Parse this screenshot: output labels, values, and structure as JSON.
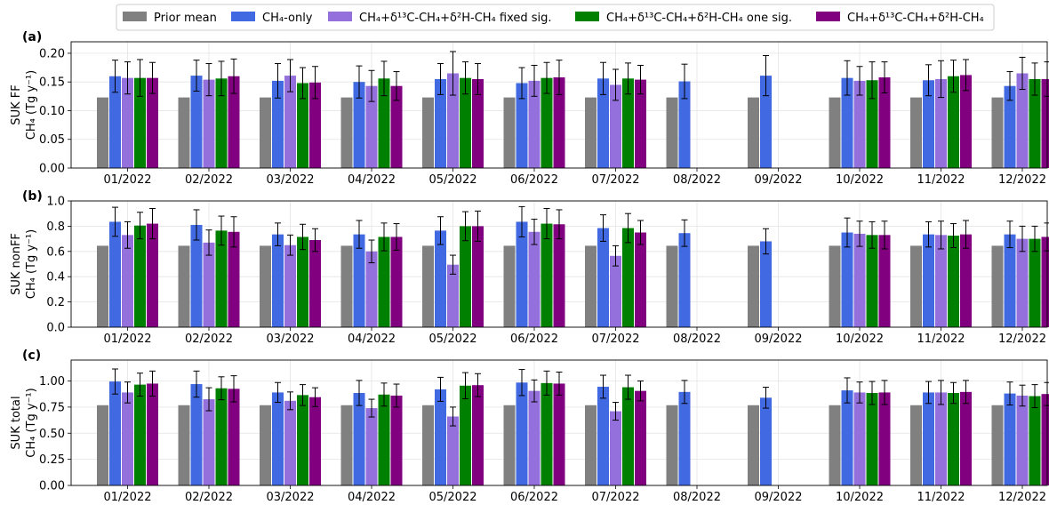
{
  "legend": {
    "placement": "top-center",
    "items": [
      {
        "label": "Prior mean",
        "color": "#808080"
      },
      {
        "label": "CH₄-only",
        "color": "#4169e1"
      },
      {
        "label": "CH₄+δ¹³C-CH₄+δ²H-CH₄ fixed sig.",
        "color": "#9370db"
      },
      {
        "label": "CH₄+δ¹³C-CH₄+δ²H-CH₄ one sig.",
        "color": "#008000"
      },
      {
        "label": "CH₄+δ¹³C-CH₄+δ²H-CH₄",
        "color": "#800080"
      }
    ]
  },
  "chart_data": [
    {
      "type": "bar",
      "panel_label": "(a)",
      "ylabel_line1": "SUK FF",
      "ylabel_line2": "CH₄ (Tg y⁻¹)",
      "ylim": [
        0,
        0.22
      ],
      "yticks": [
        "0.00",
        "0.05",
        "0.10",
        "0.15",
        "0.20"
      ],
      "grid": true,
      "categories": [
        "01/2022",
        "02/2022",
        "03/2022",
        "04/2022",
        "05/2022",
        "06/2022",
        "07/2022",
        "08/2022",
        "09/2022",
        "10/2022",
        "11/2022",
        "12/2022"
      ],
      "series": [
        {
          "name": "Prior mean",
          "color": "#808080",
          "values": [
            0.123,
            0.123,
            0.123,
            0.123,
            0.123,
            0.123,
            0.123,
            0.123,
            0.123,
            0.123,
            0.123,
            0.123
          ],
          "errors": [
            null,
            null,
            null,
            null,
            null,
            null,
            null,
            null,
            null,
            null,
            null,
            null
          ]
        },
        {
          "name": "CH₄-only",
          "color": "#4169e1",
          "values": [
            0.16,
            0.161,
            0.152,
            0.15,
            0.155,
            0.148,
            0.156,
            0.151,
            0.161,
            0.157,
            0.153,
            0.143
          ],
          "errors": [
            0.028,
            0.027,
            0.03,
            0.028,
            0.027,
            0.027,
            0.028,
            0.03,
            0.035,
            0.03,
            0.027,
            0.025
          ]
        },
        {
          "name": "CH₄+δ¹³C-CH₄+δ²H-CH₄ fixed sig.",
          "color": "#9370db",
          "values": [
            0.157,
            0.154,
            0.161,
            0.143,
            0.165,
            0.152,
            0.145,
            null,
            null,
            0.152,
            0.155,
            0.165
          ],
          "errors": [
            0.028,
            0.028,
            0.028,
            0.027,
            0.038,
            0.027,
            0.027,
            null,
            null,
            0.025,
            0.032,
            0.028
          ]
        },
        {
          "name": "CH₄+δ¹³C-CH₄+δ²H-CH₄ one sig.",
          "color": "#008000",
          "values": [
            0.157,
            0.156,
            0.148,
            0.156,
            0.157,
            0.157,
            0.156,
            null,
            null,
            0.153,
            0.16,
            0.155
          ],
          "errors": [
            0.032,
            0.03,
            0.027,
            0.03,
            0.028,
            0.027,
            0.027,
            null,
            null,
            0.032,
            0.028,
            0.028
          ]
        },
        {
          "name": "CH₄+δ¹³C-CH₄+δ²H-CH₄",
          "color": "#800080",
          "values": [
            0.157,
            0.16,
            0.149,
            0.143,
            0.155,
            0.158,
            0.154,
            null,
            null,
            0.158,
            0.162,
            0.155
          ],
          "errors": [
            0.027,
            0.03,
            0.028,
            0.025,
            0.027,
            0.03,
            0.025,
            null,
            null,
            0.027,
            0.027,
            0.03
          ]
        }
      ]
    },
    {
      "type": "bar",
      "panel_label": "(b)",
      "ylabel_line1": "SUK nonFF",
      "ylabel_line2": "CH₄ (Tg y⁻¹)",
      "ylim": [
        0,
        1.0
      ],
      "yticks": [
        "0.0",
        "0.2",
        "0.4",
        "0.6",
        "0.8",
        "1.0"
      ],
      "grid": true,
      "categories": [
        "01/2022",
        "02/2022",
        "03/2022",
        "04/2022",
        "05/2022",
        "06/2022",
        "07/2022",
        "08/2022",
        "09/2022",
        "10/2022",
        "11/2022",
        "12/2022"
      ],
      "series": [
        {
          "name": "Prior mean",
          "color": "#808080",
          "values": [
            0.645,
            0.645,
            0.645,
            0.645,
            0.645,
            0.645,
            0.645,
            0.645,
            0.645,
            0.645,
            0.645,
            0.645
          ],
          "errors": [
            null,
            null,
            null,
            null,
            null,
            null,
            null,
            null,
            null,
            null,
            null,
            null
          ]
        },
        {
          "name": "CH₄-only",
          "color": "#4169e1",
          "values": [
            0.835,
            0.81,
            0.735,
            0.735,
            0.765,
            0.835,
            0.785,
            0.745,
            0.68,
            0.75,
            0.735,
            0.735
          ],
          "errors": [
            0.115,
            0.12,
            0.09,
            0.11,
            0.11,
            0.12,
            0.105,
            0.105,
            0.1,
            0.115,
            0.1,
            0.105
          ]
        },
        {
          "name": "CH₄+δ¹³C-CH₄+δ²H-CH₄ fixed sig.",
          "color": "#9370db",
          "values": [
            0.73,
            0.67,
            0.65,
            0.6,
            0.495,
            0.755,
            0.565,
            null,
            null,
            0.74,
            0.73,
            0.7
          ],
          "errors": [
            0.105,
            0.1,
            0.08,
            0.09,
            0.075,
            0.1,
            0.08,
            null,
            null,
            0.1,
            0.11,
            0.1
          ]
        },
        {
          "name": "CH₄+δ¹³C-CH₄+δ²H-CH₄ one sig.",
          "color": "#008000",
          "values": [
            0.805,
            0.765,
            0.715,
            0.715,
            0.8,
            0.82,
            0.785,
            null,
            null,
            0.73,
            0.725,
            0.7
          ],
          "errors": [
            0.105,
            0.115,
            0.1,
            0.11,
            0.115,
            0.12,
            0.115,
            null,
            null,
            0.105,
            0.095,
            0.1
          ]
        },
        {
          "name": "CH₄+δ¹³C-CH₄+δ²H-CH₄",
          "color": "#800080",
          "values": [
            0.82,
            0.755,
            0.69,
            0.715,
            0.8,
            0.815,
            0.75,
            null,
            null,
            0.73,
            0.735,
            0.715
          ],
          "errors": [
            0.12,
            0.12,
            0.09,
            0.105,
            0.12,
            0.115,
            0.095,
            null,
            null,
            0.11,
            0.11,
            0.11
          ]
        }
      ]
    },
    {
      "type": "bar",
      "panel_label": "(c)",
      "ylabel_line1": "SUK total",
      "ylabel_line2": "CH₄ (Tg y⁻¹)",
      "ylim": [
        0,
        1.2
      ],
      "yticks": [
        "0.00",
        "0.25",
        "0.50",
        "0.75",
        "1.00"
      ],
      "grid": true,
      "categories": [
        "01/2022",
        "02/2022",
        "03/2022",
        "04/2022",
        "05/2022",
        "06/2022",
        "07/2022",
        "08/2022",
        "09/2022",
        "10/2022",
        "11/2022",
        "12/2022"
      ],
      "series": [
        {
          "name": "Prior mean",
          "color": "#808080",
          "values": [
            0.768,
            0.768,
            0.768,
            0.768,
            0.768,
            0.768,
            0.768,
            0.768,
            0.768,
            0.768,
            0.768,
            0.768
          ],
          "errors": [
            null,
            null,
            null,
            null,
            null,
            null,
            null,
            null,
            null,
            null,
            null,
            null
          ]
        },
        {
          "name": "CH₄-only",
          "color": "#4169e1",
          "values": [
            0.995,
            0.97,
            0.89,
            0.885,
            0.92,
            0.985,
            0.945,
            0.895,
            0.84,
            0.91,
            0.89,
            0.88
          ],
          "errors": [
            0.12,
            0.125,
            0.095,
            0.12,
            0.115,
            0.125,
            0.11,
            0.11,
            0.1,
            0.12,
            0.105,
            0.11
          ]
        },
        {
          "name": "CH₄+δ¹³C-CH₄+δ²H-CH₄ fixed sig.",
          "color": "#9370db",
          "values": [
            0.89,
            0.825,
            0.81,
            0.74,
            0.66,
            0.905,
            0.71,
            null,
            null,
            0.89,
            0.89,
            0.86
          ],
          "errors": [
            0.1,
            0.11,
            0.085,
            0.085,
            0.09,
            0.105,
            0.085,
            null,
            null,
            0.1,
            0.115,
            0.1
          ]
        },
        {
          "name": "CH₄+δ¹³C-CH₄+δ²H-CH₄ one sig.",
          "color": "#008000",
          "values": [
            0.965,
            0.93,
            0.865,
            0.87,
            0.955,
            0.98,
            0.94,
            null,
            null,
            0.885,
            0.885,
            0.855
          ],
          "errors": [
            0.11,
            0.11,
            0.1,
            0.11,
            0.125,
            0.115,
            0.115,
            null,
            null,
            0.11,
            0.1,
            0.11
          ]
        },
        {
          "name": "CH₄+δ¹³C-CH₄+δ²H-CH₄",
          "color": "#800080",
          "values": [
            0.975,
            0.925,
            0.845,
            0.86,
            0.96,
            0.975,
            0.905,
            null,
            null,
            0.89,
            0.895,
            0.875
          ],
          "errors": [
            0.12,
            0.125,
            0.09,
            0.11,
            0.11,
            0.11,
            0.095,
            null,
            null,
            0.115,
            0.11,
            0.11
          ]
        }
      ]
    }
  ]
}
